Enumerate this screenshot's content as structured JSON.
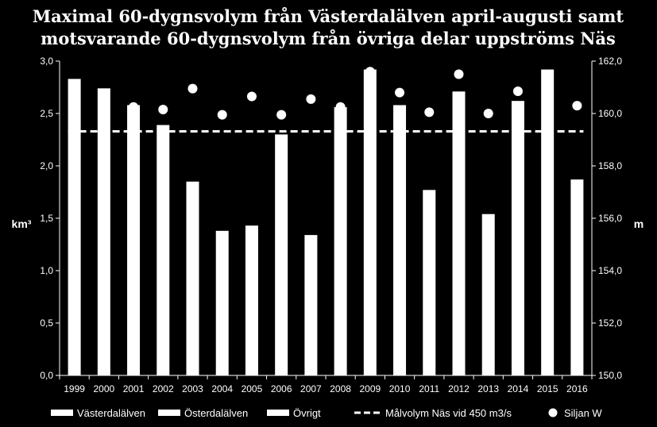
{
  "chart_data": {
    "type": "bar",
    "title_lines": [
      "Maximal 60-dygnsvolym från Västerdalälven april-augusti samt",
      "motsvarande 60-dygnsvolym från övriga delar uppströms Näs"
    ],
    "categories": [
      "1999",
      "2000",
      "2001",
      "2002",
      "2003",
      "2004",
      "2005",
      "2006",
      "2007",
      "2008",
      "2009",
      "2010",
      "2011",
      "2012",
      "2013",
      "2014",
      "2015",
      "2016"
    ],
    "y_left": {
      "label": "km³",
      "min": 0,
      "max": 3.0,
      "step": 0.5,
      "tick_labels": [
        "0,0",
        "0,5",
        "1,0",
        "1,5",
        "2,0",
        "2,5",
        "3,0"
      ]
    },
    "y_right": {
      "label": "m",
      "min": 150,
      "max": 162,
      "step": 2,
      "tick_labels": [
        "150,0",
        "152,0",
        "154,0",
        "156,0",
        "158,0",
        "160,0",
        "162,0"
      ]
    },
    "series": [
      {
        "name": "Västerdalälven",
        "type": "bar",
        "axis": "left",
        "color": "#ffffff",
        "values": [
          2.83,
          2.74,
          2.58,
          2.39,
          1.85,
          1.38,
          1.43,
          2.3,
          1.34,
          2.56,
          2.92,
          2.58,
          1.77,
          2.71,
          1.54,
          2.62,
          2.92,
          1.87
        ]
      },
      {
        "name": "Österdalälven",
        "type": "bar",
        "axis": "left",
        "color": "#ffffff",
        "values": [
          0,
          0,
          0,
          0,
          0,
          0,
          0,
          0,
          0,
          0,
          0,
          0,
          0,
          0,
          0,
          0,
          0,
          0
        ]
      },
      {
        "name": "Övrigt",
        "type": "bar",
        "axis": "left",
        "color": "#ffffff",
        "values": [
          0,
          0,
          0,
          0,
          0,
          0,
          0,
          0,
          0,
          0,
          0,
          0,
          0,
          0,
          0,
          0,
          0,
          0
        ]
      },
      {
        "name": "Målvolym Näs vid 450 m3/s",
        "type": "line",
        "axis": "left",
        "color": "#ffffff",
        "dashed": true,
        "value": 2.33
      },
      {
        "name": "Siljan W",
        "type": "scatter",
        "axis": "right",
        "color": "#ffffff",
        "values": [
          null,
          null,
          160.25,
          160.15,
          160.95,
          159.95,
          160.65,
          159.95,
          160.55,
          160.25,
          161.6,
          160.8,
          160.05,
          161.5,
          160.0,
          160.85,
          null,
          160.3
        ]
      }
    ],
    "legend_position": "bottom",
    "grid": false
  }
}
